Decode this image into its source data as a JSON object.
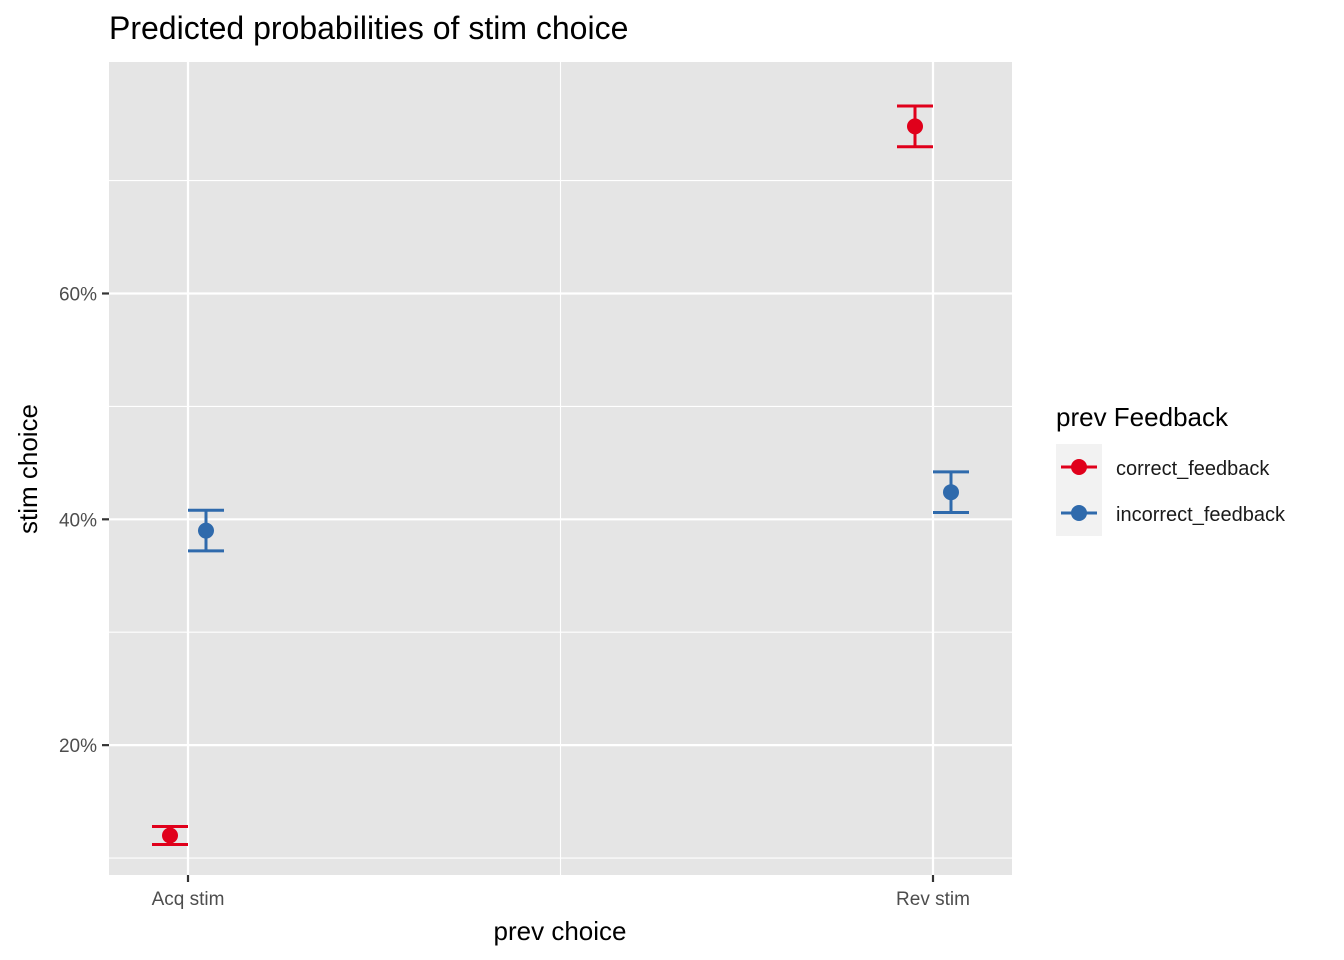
{
  "chart_data": {
    "type": "scatter",
    "title": "Predicted probabilities of stim choice",
    "xlabel": "prev choice",
    "ylabel": "stim choice",
    "categories": [
      "Acq stim",
      "Rev stim"
    ],
    "ylim": [
      8.5,
      80.5
    ],
    "y_ticks": [
      20,
      40,
      60
    ],
    "y_tick_labels": [
      "20%",
      "40%",
      "60%"
    ],
    "grid": true,
    "legend": {
      "title": "prev Feedback",
      "position": "right"
    },
    "series": [
      {
        "name": "correct_feedback",
        "color": "#e0001b",
        "values": [
          12.0,
          74.8
        ],
        "lower": [
          11.2,
          73.0
        ],
        "upper": [
          12.8,
          76.6
        ]
      },
      {
        "name": "incorrect_feedback",
        "color": "#2f6aac",
        "values": [
          39.0,
          42.4
        ],
        "lower": [
          37.2,
          40.6
        ],
        "upper": [
          40.8,
          44.2
        ]
      }
    ]
  }
}
